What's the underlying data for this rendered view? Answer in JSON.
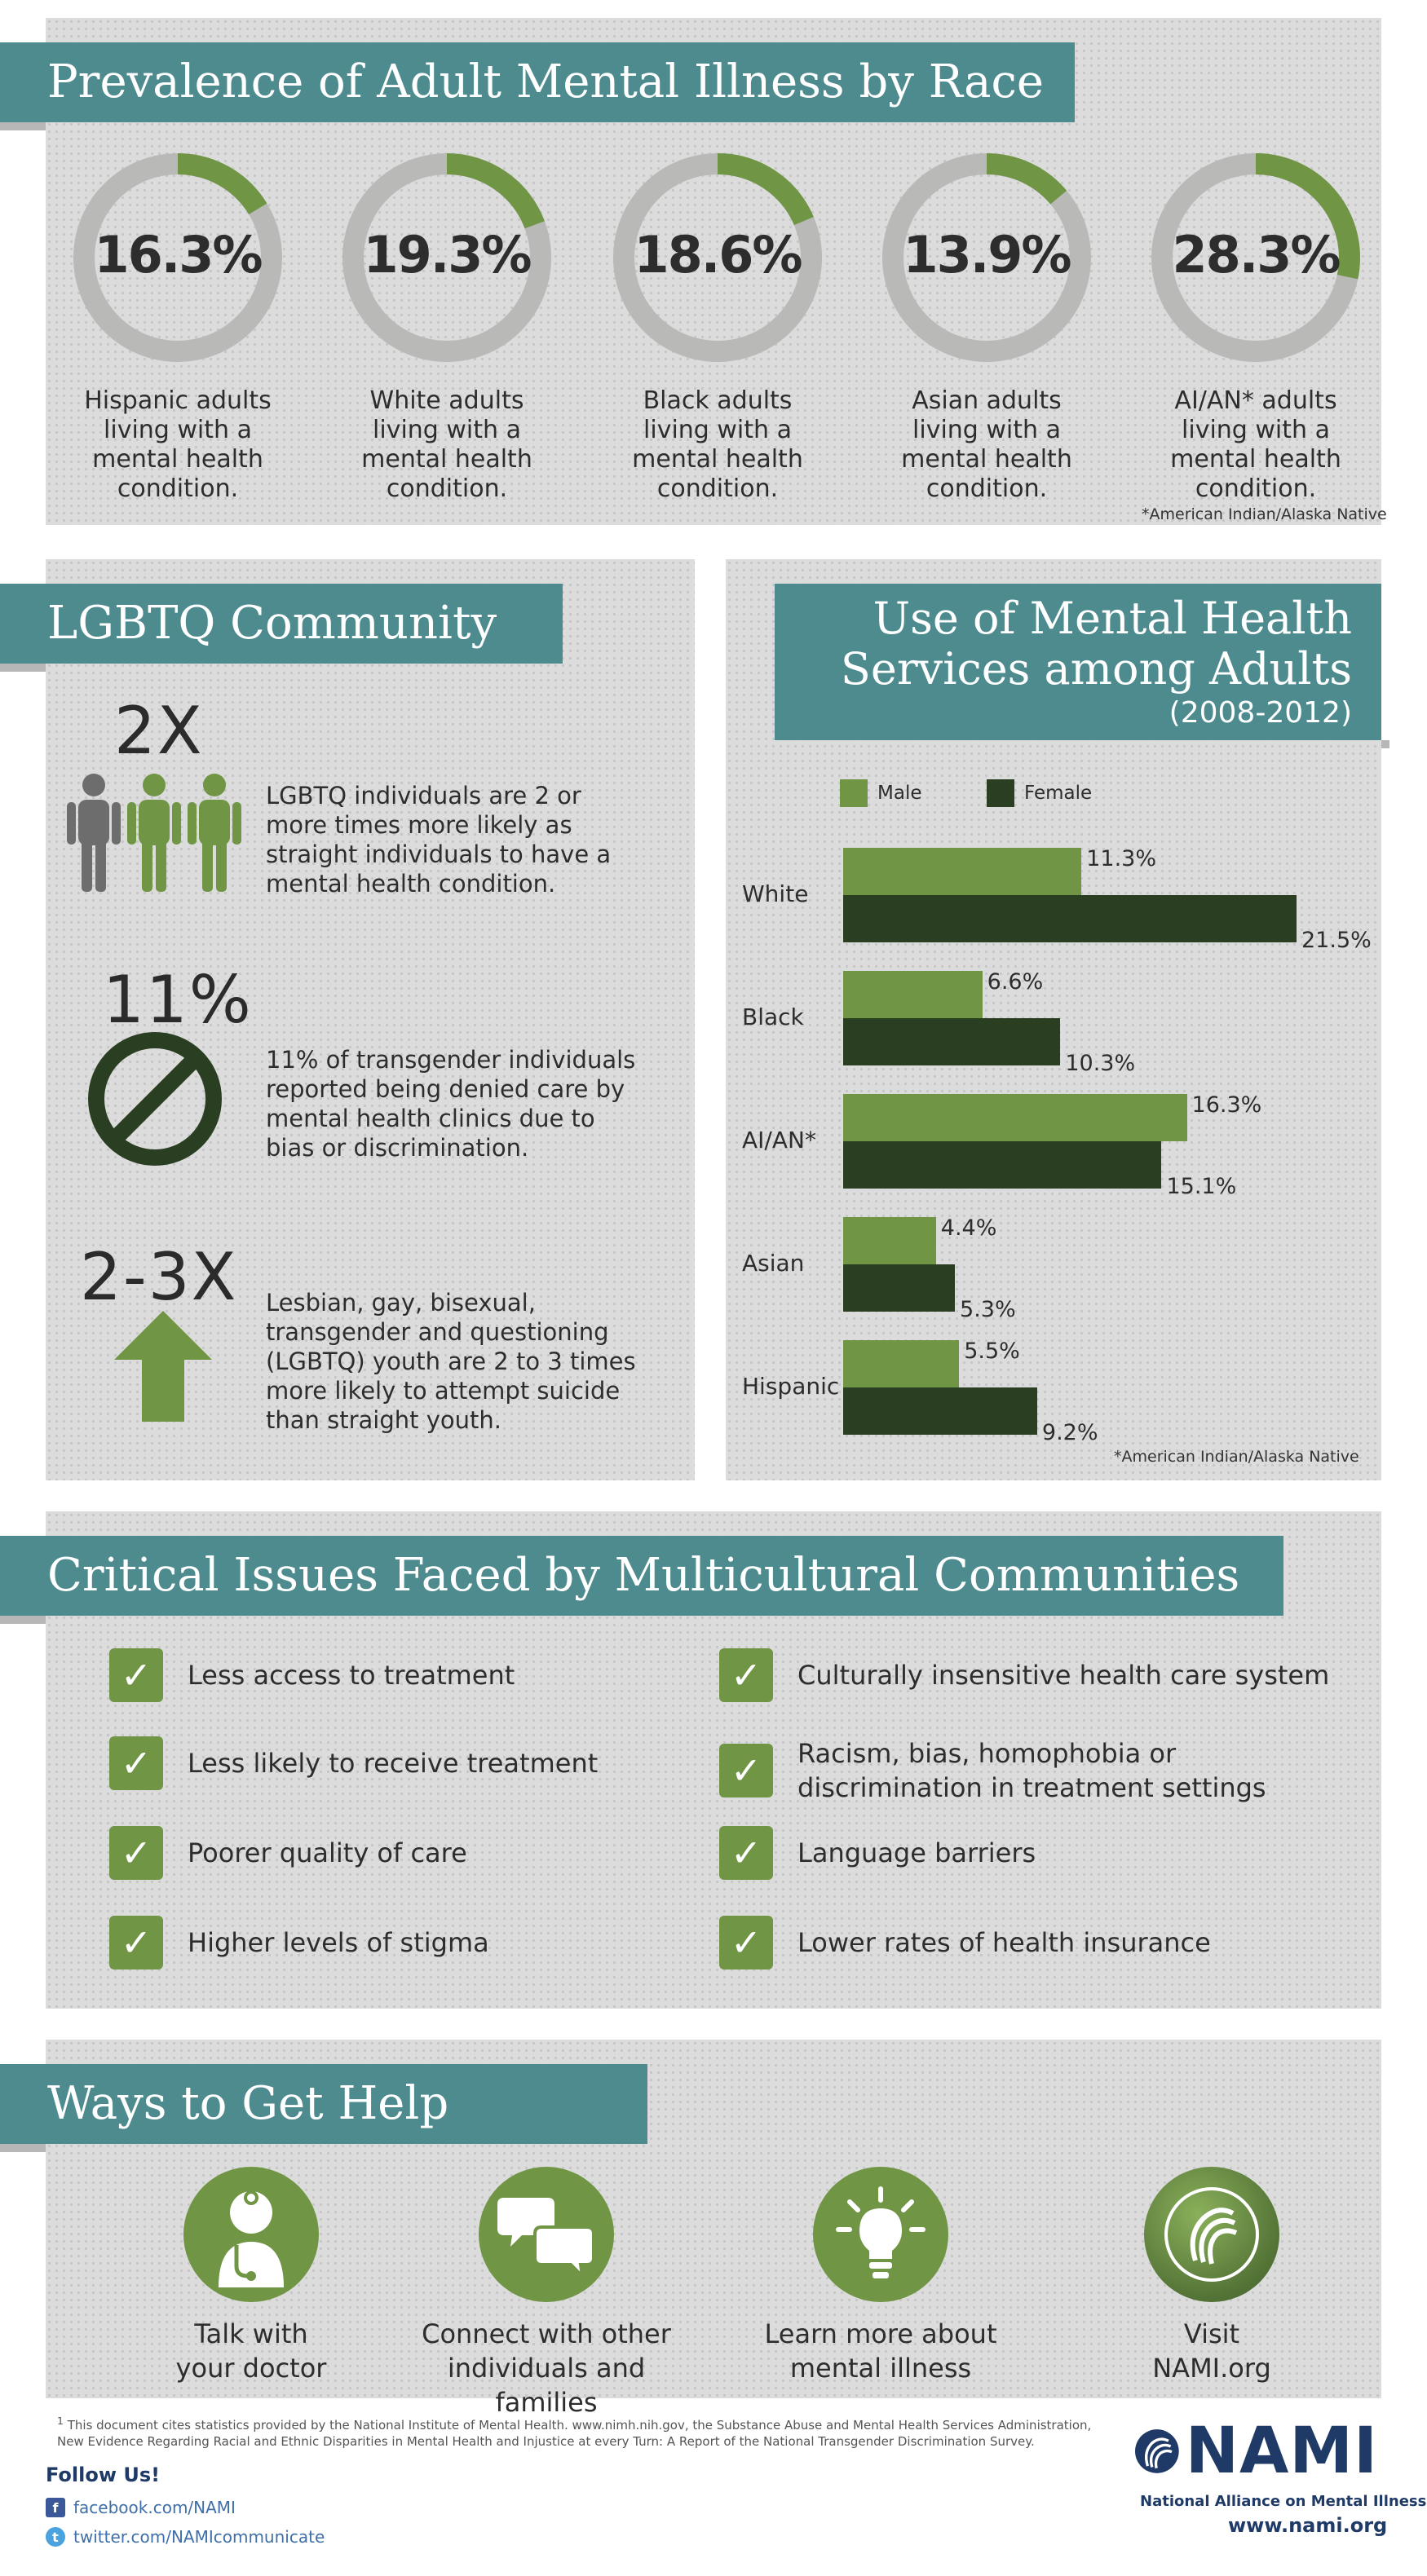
{
  "prevalence": {
    "title": "Prevalence of Adult Mental Illness by Race",
    "items": [
      {
        "value": "16.3%",
        "pct": 16.3,
        "caption": "Hispanic adults\nliving with a\nmental health\ncondition."
      },
      {
        "value": "19.3%",
        "pct": 19.3,
        "caption": "White adults\nliving with a\nmental health\ncondition."
      },
      {
        "value": "18.6%",
        "pct": 18.6,
        "caption": "Black adults\nliving with a\nmental health\ncondition."
      },
      {
        "value": "13.9%",
        "pct": 13.9,
        "caption": "Asian adults\nliving with a\nmental health\ncondition."
      },
      {
        "value": "28.3%",
        "pct": 28.3,
        "caption": "AI/AN* adults\nliving with a\nmental health\ncondition."
      }
    ],
    "footnote": "*American Indian/Alaska Native"
  },
  "lgbtq": {
    "title": "LGBTQ Community",
    "stats": [
      {
        "big": "2X",
        "text": "LGBTQ individuals are 2 or more times more likely as straight individuals to have a mental health condition.",
        "icon": "people-icon"
      },
      {
        "big": "11%",
        "text": "11% of transgender individuals reported being denied care by mental health clinics due to bias or discrimination.",
        "icon": "prohibited-icon"
      },
      {
        "big": "2-3X",
        "text": "Lesbian, gay, bisexual, transgender and questioning (LGBTQ) youth are 2 to 3 times more likely to attempt suicide than straight youth.",
        "icon": "up-arrow-icon"
      }
    ]
  },
  "services": {
    "title_line1": "Use of Mental Health",
    "title_line2": "Services among Adults",
    "subtitle": "(2008-2012)",
    "footnote": "*American Indian/Alaska Native"
  },
  "chart_data": {
    "type": "bar",
    "orientation": "horizontal",
    "title": "Use of Mental Health Services among Adults (2008-2012)",
    "categories": [
      "White",
      "Black",
      "AI/AN*",
      "Asian",
      "Hispanic"
    ],
    "series": [
      {
        "name": "Male",
        "values": [
          11.3,
          6.6,
          16.3,
          4.4,
          5.5
        ],
        "labels": [
          "11.3%",
          "6.6%",
          "16.3%",
          "4.4%",
          "5.5%"
        ],
        "color": "#6f9545"
      },
      {
        "name": "Female",
        "values": [
          21.5,
          10.3,
          15.1,
          5.3,
          9.2
        ],
        "labels": [
          "21.5%",
          "10.3%",
          "15.1%",
          "5.3%",
          "9.2%"
        ],
        "color": "#2a3f22"
      }
    ],
    "xlim": [
      0,
      21.5
    ],
    "legend": "top",
    "grid": false
  },
  "issues": {
    "title": "Critical Issues Faced by Multicultural Communities",
    "left": [
      "Less access to treatment",
      "Less likely to receive treatment",
      "Poorer quality of care",
      "Higher levels of stigma"
    ],
    "right": [
      "Culturally insensitive health care system",
      "Racism, bias, homophobia or\ndiscrimination in treatment settings",
      "Language barriers",
      "Lower rates of health insurance"
    ]
  },
  "help": {
    "title": "Ways to Get Help",
    "items": [
      {
        "text": "Talk with\nyour doctor",
        "icon": "doctor-icon"
      },
      {
        "text": "Connect with other\nindividuals and families",
        "icon": "chat-bubbles-icon"
      },
      {
        "text": "Learn more about\nmental illness",
        "icon": "lightbulb-icon"
      },
      {
        "text": "Visit\nNAMI.org",
        "icon": "nami-logo-icon"
      }
    ]
  },
  "footer": {
    "source_note": "This document cites statistics provided by the National Institute of Mental Health. www.nimh.nih.gov, the Substance Abuse and Mental Health Services Administration, New Evidence Regarding Racial and Ethnic Disparities in Mental Health and Injustice at every Turn: A Report of the National Transgender Discrimination Survey.",
    "sup": "1",
    "follow_us": "Follow Us!",
    "facebook": "facebook.com/NAMI",
    "twitter": "twitter.com/NAMIcommunicate",
    "nami_name": "NAMI",
    "nami_full": "National Alliance on Mental Illness",
    "nami_url": "www.nami.org"
  },
  "colors": {
    "teal": "#4d8b8f",
    "green": "#6f9545",
    "dark_green": "#2a3f22",
    "grey_ring": "#b9b9b7",
    "navy": "#1f3a66"
  }
}
